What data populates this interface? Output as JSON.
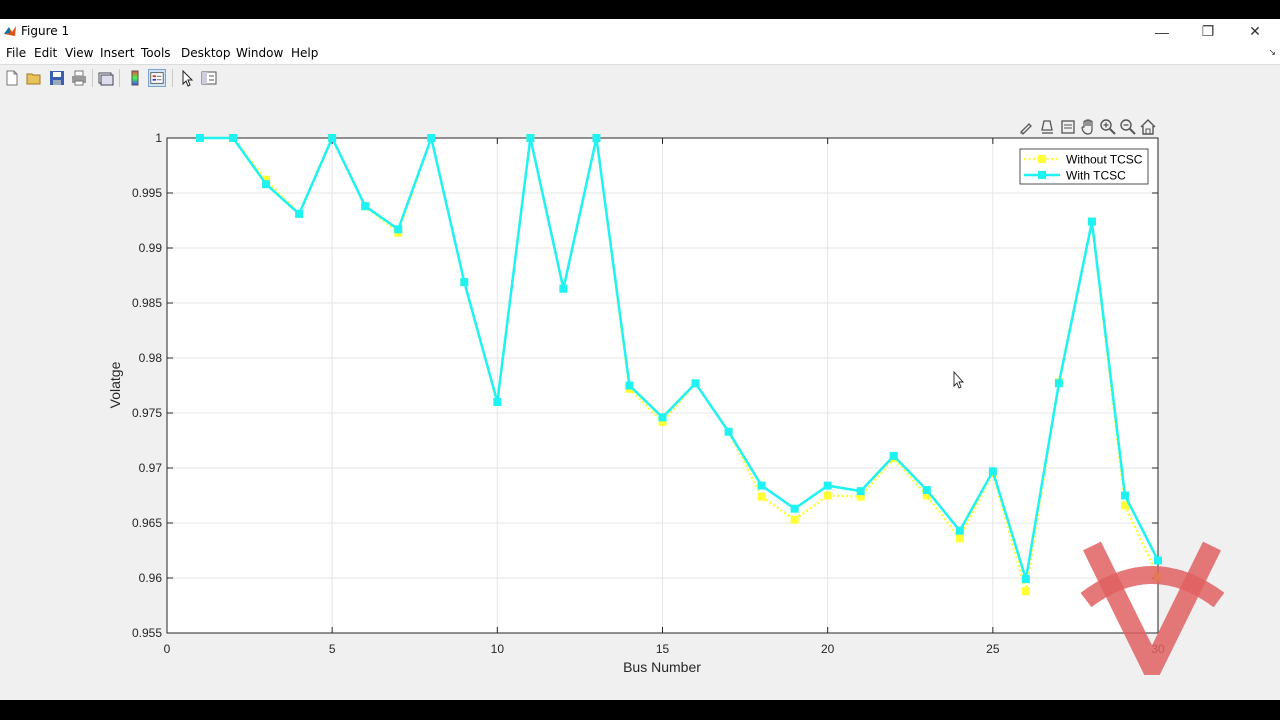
{
  "window": {
    "title": "Figure 1",
    "minimize_glyph": "—",
    "restore_glyph": "❐",
    "close_glyph": "✕"
  },
  "menu": [
    "File",
    "Edit",
    "View",
    "Insert",
    "Tools",
    "Desktop",
    "Window",
    "Help"
  ],
  "toolbar_icons": [
    "new-figure-icon",
    "open-file-icon",
    "save-icon",
    "print-icon",
    "link-plot-icon",
    "insert-colorbar-icon",
    "insert-legend-icon",
    "edit-plot-icon",
    "property-inspector-icon"
  ],
  "axes_toolbar_icons": [
    "brush-icon",
    "data-tips-icon",
    "export-icon",
    "pan-icon",
    "zoom-in-icon",
    "zoom-out-icon",
    "home-icon"
  ],
  "colors": {
    "series_without": "#ffff33",
    "series_with": "#1ff2f2",
    "watermark": "#e06060"
  },
  "chart_data": {
    "type": "line",
    "title": "",
    "xlabel": "Bus Number",
    "ylabel": "Volatge",
    "xlim": [
      0,
      30
    ],
    "ylim": [
      0.955,
      1
    ],
    "xticks": [
      0,
      5,
      10,
      15,
      20,
      25,
      30
    ],
    "yticks": [
      0.955,
      0.96,
      0.965,
      0.97,
      0.975,
      0.98,
      0.985,
      0.99,
      0.995,
      1
    ],
    "ytick_labels": [
      "0.955",
      "0.96",
      "0.965",
      "0.97",
      "0.975",
      "0.98",
      "0.985",
      "0.99",
      "0.995",
      "1"
    ],
    "grid": true,
    "legend_position": "top-right",
    "x": [
      1,
      2,
      3,
      4,
      5,
      6,
      7,
      8,
      9,
      10,
      11,
      12,
      13,
      14,
      15,
      16,
      17,
      18,
      19,
      20,
      21,
      22,
      23,
      24,
      25,
      26,
      27,
      28,
      29,
      30
    ],
    "series": [
      {
        "name": "Without TCSC",
        "style": "dotted",
        "marker": "square",
        "values": [
          1.0,
          1.0,
          0.9962,
          0.9931,
          1.0,
          0.9938,
          0.9914,
          1.0,
          0.9869,
          0.976,
          1.0,
          0.9863,
          1.0,
          0.9772,
          0.9742,
          0.9777,
          0.9733,
          0.9674,
          0.9653,
          0.9675,
          0.9674,
          0.9709,
          0.9675,
          0.9636,
          0.9695,
          0.9588,
          0.9778,
          0.9924,
          0.9666,
          0.9601
        ]
      },
      {
        "name": "With TCSC",
        "style": "solid",
        "marker": "square",
        "values": [
          1.0,
          1.0,
          0.9958,
          0.9931,
          1.0,
          0.9938,
          0.9917,
          1.0,
          0.9869,
          0.976,
          1.0,
          0.9863,
          1.0,
          0.9775,
          0.9746,
          0.9777,
          0.9733,
          0.9684,
          0.9663,
          0.9684,
          0.9679,
          0.9711,
          0.968,
          0.9643,
          0.9697,
          0.9599,
          0.9777,
          0.9924,
          0.9675,
          0.9616
        ]
      }
    ]
  }
}
